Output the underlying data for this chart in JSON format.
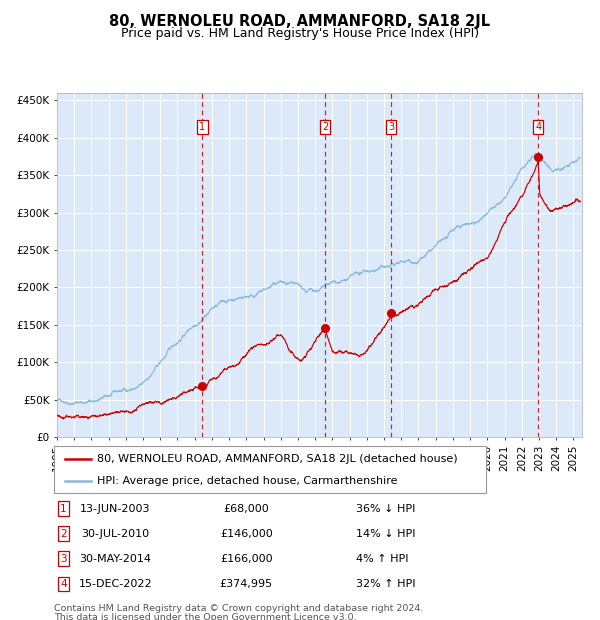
{
  "title": "80, WERNOLEU ROAD, AMMANFORD, SA18 2JL",
  "subtitle": "Price paid vs. HM Land Registry's House Price Index (HPI)",
  "xlim_start": 1995.0,
  "xlim_end": 2025.5,
  "ylim_min": 0,
  "ylim_max": 460000,
  "yticks": [
    0,
    50000,
    100000,
    150000,
    200000,
    250000,
    300000,
    350000,
    400000,
    450000
  ],
  "ytick_labels": [
    "£0",
    "£50K",
    "£100K",
    "£150K",
    "£200K",
    "£250K",
    "£300K",
    "£350K",
    "£400K",
    "£450K"
  ],
  "xticks": [
    1995,
    1996,
    1997,
    1998,
    1999,
    2000,
    2001,
    2002,
    2003,
    2004,
    2005,
    2006,
    2007,
    2008,
    2009,
    2010,
    2011,
    2012,
    2013,
    2014,
    2015,
    2016,
    2017,
    2018,
    2019,
    2020,
    2021,
    2022,
    2023,
    2024,
    2025
  ],
  "background_color": "#dce9f8",
  "grid_color": "#ffffff",
  "hpi_color": "#8cb8dc",
  "price_color": "#cc0000",
  "sale_dot_color": "#cc0000",
  "vline_color": "#cc0000",
  "legend_line1": "80, WERNOLEU ROAD, AMMANFORD, SA18 2JL (detached house)",
  "legend_line2": "HPI: Average price, detached house, Carmarthenshire",
  "transactions": [
    {
      "num": 1,
      "date_str": "13-JUN-2003",
      "x": 2003.45,
      "price": 68000,
      "pct": "36%",
      "dir": "↓"
    },
    {
      "num": 2,
      "date_str": "30-JUL-2010",
      "x": 2010.58,
      "price": 146000,
      "pct": "14%",
      "dir": "↓"
    },
    {
      "num": 3,
      "date_str": "30-MAY-2014",
      "x": 2014.41,
      "price": 166000,
      "pct": "4%",
      "dir": "↑"
    },
    {
      "num": 4,
      "date_str": "15-DEC-2022",
      "x": 2022.96,
      "price": 374995,
      "pct": "32%",
      "dir": "↑"
    }
  ],
  "footnote_line1": "Contains HM Land Registry data © Crown copyright and database right 2024.",
  "footnote_line2": "This data is licensed under the Open Government Licence v3.0.",
  "title_fontsize": 10.5,
  "subtitle_fontsize": 9,
  "tick_fontsize": 7.5,
  "legend_fontsize": 8,
  "table_fontsize": 8,
  "footnote_fontsize": 6.8
}
